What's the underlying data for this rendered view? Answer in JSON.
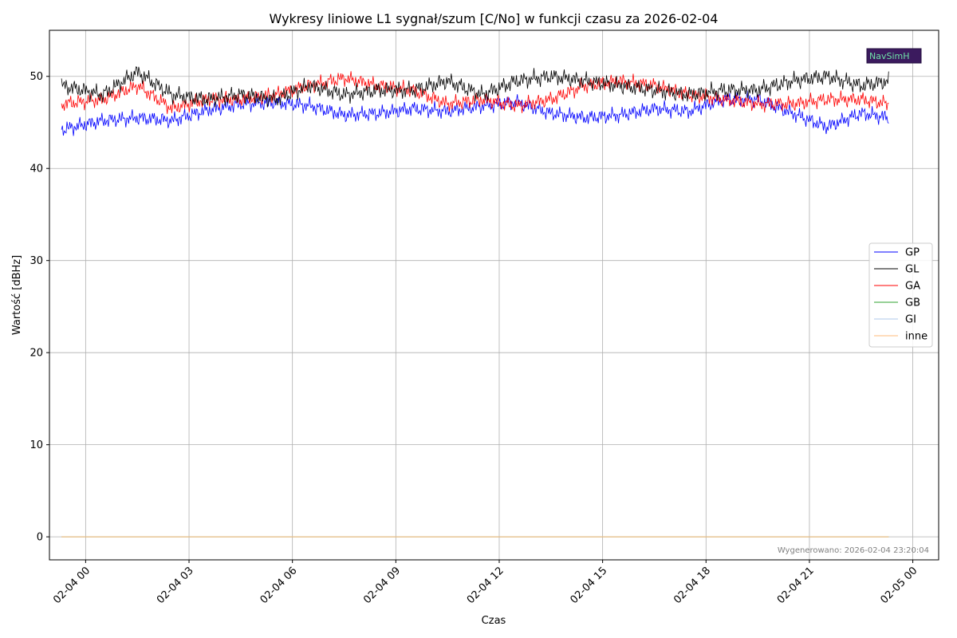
{
  "chart_data": {
    "type": "line",
    "title": "Wykresy liniowe L1 sygnał/szum [C/No] w funkcji czasu za 2026-02-04",
    "xlabel": "Czas",
    "ylabel": "Wartość [dBHz]",
    "x_range_hours": [
      -1.05,
      24.75
    ],
    "ylim": [
      -2.5,
      55
    ],
    "x_ticks": [
      {
        "hour": 0,
        "label": "02-04 00"
      },
      {
        "hour": 3,
        "label": "02-04 03"
      },
      {
        "hour": 6,
        "label": "02-04 06"
      },
      {
        "hour": 9,
        "label": "02-04 09"
      },
      {
        "hour": 12,
        "label": "02-04 12"
      },
      {
        "hour": 15,
        "label": "02-04 15"
      },
      {
        "hour": 18,
        "label": "02-04 18"
      },
      {
        "hour": 21,
        "label": "02-04 21"
      },
      {
        "hour": 24,
        "label": "02-05 00"
      }
    ],
    "y_ticks": [
      0,
      10,
      20,
      30,
      40,
      50
    ],
    "grid": true,
    "legend_position": "right",
    "x_hours": [
      -0.7,
      0.5,
      1.5,
      2.5,
      3.5,
      4.5,
      5.5,
      6.5,
      7.5,
      8.5,
      9.5,
      10.5,
      11.5,
      12.5,
      13.5,
      14.5,
      15.5,
      16.5,
      17.5,
      18.5,
      19.5,
      20.5,
      21.5,
      22.5,
      23.3
    ],
    "series": [
      {
        "name": "GP",
        "color": "#0000ff",
        "values": [
          44.2,
          45.2,
          45.5,
          45.2,
          46.3,
          47.0,
          47.2,
          46.8,
          45.8,
          46.0,
          46.5,
          46.2,
          46.8,
          47.2,
          46.0,
          45.5,
          45.8,
          46.5,
          46.2,
          47.5,
          47.5,
          46.0,
          44.5,
          46.0,
          45.5
        ]
      },
      {
        "name": "GL",
        "color": "#000000",
        "values": [
          49.0,
          48.0,
          50.5,
          48.0,
          47.5,
          48.0,
          47.5,
          49.0,
          48.0,
          48.5,
          48.5,
          49.5,
          48.0,
          49.5,
          50.0,
          49.5,
          49.0,
          48.5,
          48.0,
          48.5,
          48.5,
          49.5,
          50.0,
          49.0,
          49.5
        ]
      },
      {
        "name": "GA",
        "color": "#ff0000",
        "values": [
          47.0,
          47.5,
          49.0,
          46.5,
          47.5,
          47.5,
          48.0,
          49.0,
          49.8,
          49.0,
          48.5,
          47.0,
          47.5,
          46.8,
          47.5,
          49.0,
          49.5,
          49.0,
          48.0,
          47.5,
          47.0,
          47.0,
          47.5,
          47.5,
          47.0
        ]
      },
      {
        "name": "GB",
        "color": "#2ca02c",
        "values": [
          0,
          0,
          0,
          0,
          0,
          0,
          0,
          0,
          0,
          0,
          0,
          0,
          0,
          0,
          0,
          0,
          0,
          0,
          0,
          0,
          0,
          0,
          0,
          0,
          0
        ]
      },
      {
        "name": "GI",
        "color": "#aec7e8",
        "values": [
          0,
          0,
          0,
          0,
          0,
          0,
          0,
          0,
          0,
          0,
          0,
          0,
          0,
          0,
          0,
          0,
          0,
          0,
          0,
          0,
          0,
          0,
          0,
          0,
          0
        ]
      },
      {
        "name": "inne",
        "color": "#ffbb78",
        "values": [
          0,
          0,
          0,
          0,
          0,
          0,
          0,
          0,
          0,
          0,
          0,
          0,
          0,
          0,
          0,
          0,
          0,
          0,
          0,
          0,
          0,
          0,
          0,
          0,
          0
        ]
      }
    ],
    "footer": "Wygenerowano: 2026-02-04 23:20:04",
    "logo_text": "NavSimH"
  }
}
